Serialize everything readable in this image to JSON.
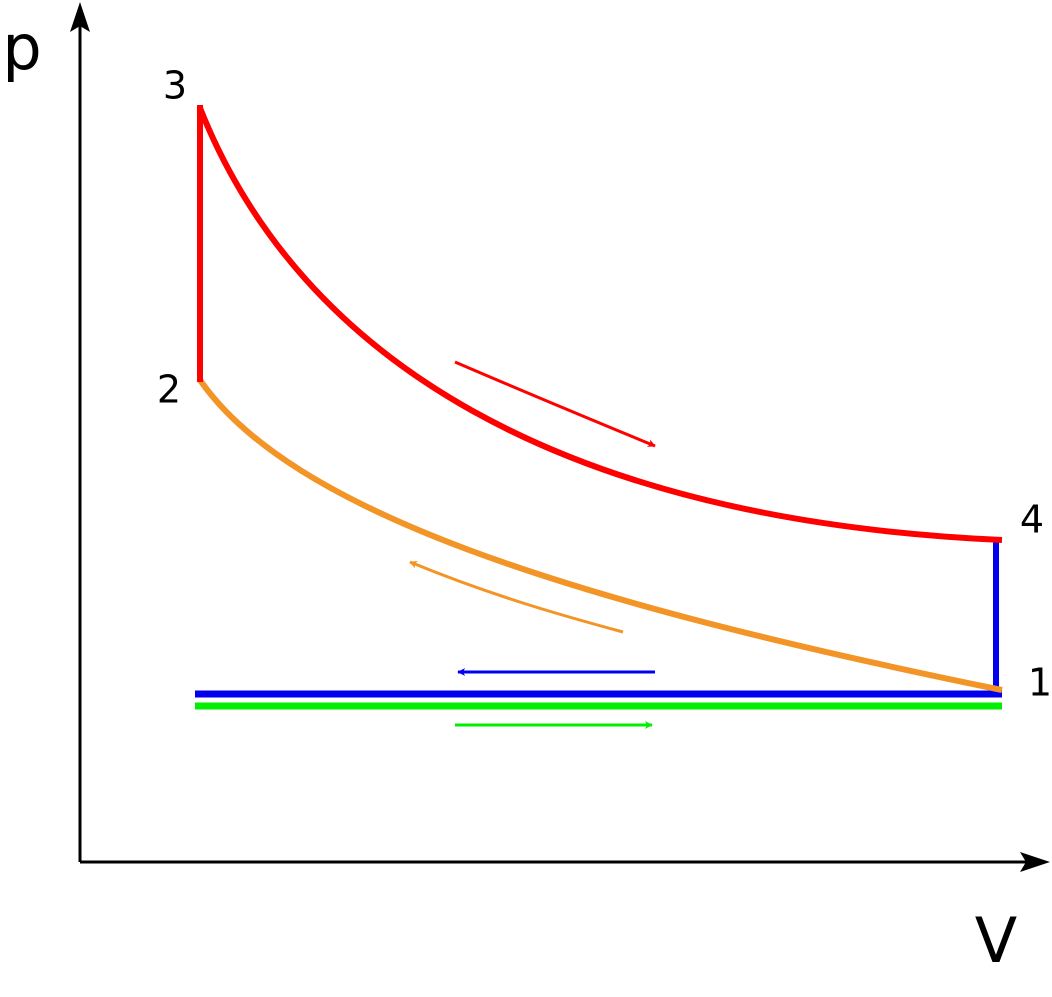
{
  "axes": {
    "y_label": "p",
    "x_label": "V"
  },
  "points": [
    {
      "label": "1"
    },
    {
      "label": "2"
    },
    {
      "label": "3"
    },
    {
      "label": "4"
    }
  ]
}
